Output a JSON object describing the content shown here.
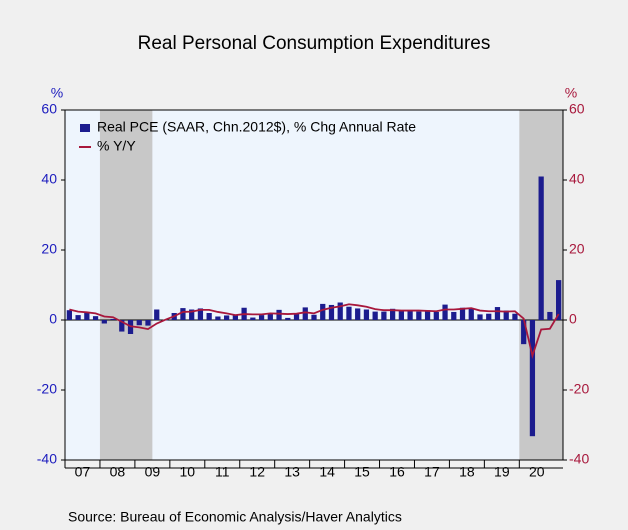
{
  "chart_data": {
    "type": "bar",
    "title": "Real Personal Consumption Expenditures",
    "source": "Source:  Bureau of Economic Analysis/Haver Analytics",
    "ylabel": "%",
    "y2label": "%",
    "x": [
      2007,
      2007.25,
      2007.5,
      2007.75,
      2008,
      2008.25,
      2008.5,
      2008.75,
      2009,
      2009.25,
      2009.5,
      2009.75,
      2010,
      2010.25,
      2010.5,
      2010.75,
      2011,
      2011.25,
      2011.5,
      2011.75,
      2012,
      2012.25,
      2012.5,
      2012.75,
      2013,
      2013.25,
      2013.5,
      2013.75,
      2014,
      2014.25,
      2014.5,
      2014.75,
      2015,
      2015.25,
      2015.5,
      2015.75,
      2016,
      2016.25,
      2016.5,
      2016.75,
      2017,
      2017.25,
      2017.5,
      2017.75,
      2018,
      2018.25,
      2018.5,
      2018.75,
      2019,
      2019.25,
      2019.5,
      2019.75,
      2020,
      2020.25,
      2020.5,
      2020.75,
      2021
    ],
    "series": [
      {
        "name": "Real PCE (SAAR, Chn.2012$), % Chg Annual Rate",
        "type": "bar",
        "color": "#1c1c8e",
        "values": [
          2.8,
          1.4,
          2.1,
          1.1,
          -1.0,
          0.3,
          -3.3,
          -4.0,
          -1.5,
          -1.6,
          3.0,
          -0.1,
          2.0,
          3.4,
          3.0,
          3.3,
          2.0,
          1.0,
          1.3,
          1.3,
          3.5,
          0.7,
          1.4,
          1.9,
          2.9,
          0.6,
          1.9,
          3.6,
          1.5,
          4.6,
          4.3,
          5.0,
          3.8,
          3.3,
          3.0,
          2.4,
          2.4,
          3.2,
          2.7,
          2.5,
          2.4,
          2.8,
          2.3,
          4.4,
          2.3,
          3.5,
          3.2,
          1.6,
          1.8,
          3.7,
          2.7,
          1.8,
          -6.9,
          -33.2,
          41.0,
          2.3,
          11.4
        ]
      },
      {
        "name": "% Y/Y",
        "type": "line",
        "axis": "y2",
        "color": "#a8183c",
        "values": [
          3.0,
          2.4,
          2.2,
          1.9,
          1.0,
          0.8,
          -0.5,
          -1.8,
          -2.1,
          -2.6,
          -1.0,
          0.1,
          1.1,
          2.3,
          2.4,
          2.9,
          2.9,
          2.3,
          1.9,
          1.4,
          1.7,
          1.6,
          1.6,
          1.9,
          1.8,
          1.7,
          1.8,
          2.2,
          1.9,
          2.9,
          3.5,
          3.9,
          4.5,
          4.2,
          3.8,
          3.1,
          2.8,
          2.8,
          2.7,
          2.7,
          2.7,
          2.6,
          2.5,
          3.0,
          3.0,
          3.2,
          3.4,
          2.7,
          2.5,
          2.5,
          2.4,
          2.5,
          0.4,
          -10.2,
          -2.7,
          -2.5,
          1.7
        ]
      }
    ],
    "recessions": [
      [
        2008,
        2009.5
      ],
      [
        2020,
        2021.25
      ]
    ],
    "xlim": [
      2007,
      2021.25
    ],
    "xticks": [
      {
        "value": 2007,
        "label": "07"
      },
      {
        "value": 2008,
        "label": "08"
      },
      {
        "value": 2009,
        "label": "09"
      },
      {
        "value": 2010,
        "label": "10"
      },
      {
        "value": 2011,
        "label": "11"
      },
      {
        "value": 2012,
        "label": "12"
      },
      {
        "value": 2013,
        "label": "13"
      },
      {
        "value": 2014,
        "label": "14"
      },
      {
        "value": 2015,
        "label": "15"
      },
      {
        "value": 2016,
        "label": "16"
      },
      {
        "value": 2017,
        "label": "17"
      },
      {
        "value": 2018,
        "label": "18"
      },
      {
        "value": 2019,
        "label": "19"
      },
      {
        "value": 2020,
        "label": "20"
      }
    ],
    "ylim": [
      -40,
      60
    ],
    "yticks": [
      -40,
      -20,
      0,
      20,
      40,
      60
    ],
    "y2lim": [
      -40,
      60
    ],
    "y2ticks": [
      -40,
      -20,
      0,
      20,
      40,
      60
    ],
    "legend": "upper left"
  }
}
